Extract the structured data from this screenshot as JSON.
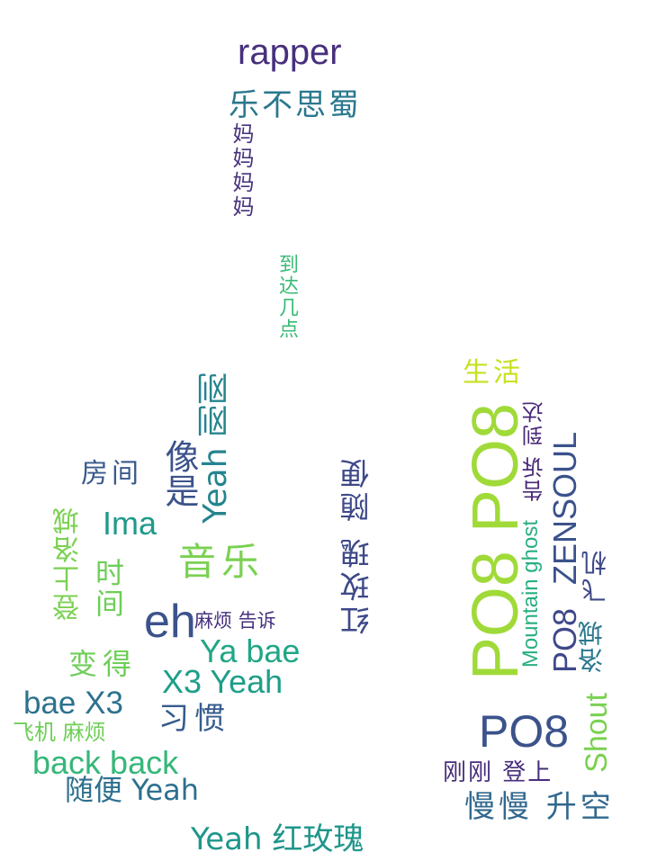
{
  "word_cloud": {
    "words": [
      {
        "text": "rapper",
        "color": "#472f7d"
      },
      {
        "text": "乐不思蜀",
        "color": "#2a788e"
      },
      {
        "text": "妈妈妈妈",
        "color": "#46327e"
      },
      {
        "text": "到达几点",
        "color": "#3aba76"
      },
      {
        "text": "生活",
        "color": "#c8e020"
      },
      {
        "text": "PO8 PO8",
        "color": "#a0da39"
      },
      {
        "text": "告诉 到达",
        "color": "#482878"
      },
      {
        "text": "Yeah 刚刚",
        "color": "#25848e"
      },
      {
        "text": "像是",
        "color": "#3b528b"
      },
      {
        "text": "红玫瑰 随便",
        "color": "#3e4989"
      },
      {
        "text": "房间",
        "color": "#38598c"
      },
      {
        "text": "Ima",
        "color": "#1f9a8a"
      },
      {
        "text": "音乐",
        "color": "#7ad151"
      },
      {
        "text": "登上洛城",
        "color": "#7ad151"
      },
      {
        "text": "时间",
        "color": "#6ece58"
      },
      {
        "text": "eh",
        "color": "#3b528b"
      },
      {
        "text": "麻烦 告诉",
        "color": "#46327e"
      },
      {
        "text": "Ya bae",
        "color": "#21a685"
      },
      {
        "text": "变得",
        "color": "#6ece58"
      },
      {
        "text": "X3 Yeah",
        "color": "#1f9e89"
      },
      {
        "text": "bae X3",
        "color": "#2c728e"
      },
      {
        "text": "习惯",
        "color": "#365c8d"
      },
      {
        "text": "飞机 麻烦",
        "color": "#6ece58"
      },
      {
        "text": "back back",
        "color": "#35b779"
      },
      {
        "text": "随便 Yeah",
        "color": "#2d708e"
      },
      {
        "text": "Yeah 红玫瑰",
        "color": "#1f968b"
      },
      {
        "text": "ZENSOUL",
        "color": "#3b528b"
      },
      {
        "text": "Mountain ghost",
        "color": "#29af7f"
      },
      {
        "text": "PO8",
        "color": "#3b528b"
      },
      {
        "text": "飞机",
        "color": "#3e4989"
      },
      {
        "text": "洛城",
        "color": "#2a788e"
      },
      {
        "text": "Shout",
        "color": "#7ad151"
      },
      {
        "text": "PO8",
        "color": "#3f4889"
      },
      {
        "text": "刚刚 登上",
        "color": "#472d7b"
      },
      {
        "text": "慢慢 升空",
        "color": "#31688e"
      }
    ]
  }
}
